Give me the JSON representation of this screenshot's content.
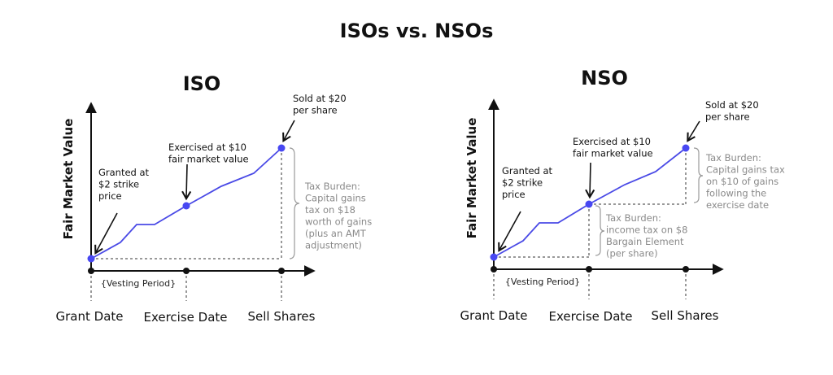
{
  "title": "ISOs vs. NSOs",
  "colors": {
    "line": "#4a4ae6",
    "point": "#4848f2",
    "ink": "#111111",
    "muted": "#8a8a8a"
  },
  "panels": [
    {
      "id": "iso",
      "heading": "ISO",
      "ylabel": "Fair Market Value",
      "x_ticks": [
        "Grant Date",
        "Exercise Date",
        "Sell Shares"
      ],
      "vesting": "{Vesting Period}",
      "annotations": {
        "granted": [
          "Granted at",
          "$2 strike",
          "price"
        ],
        "exercised": [
          "Exercised at $10",
          "fair market value"
        ],
        "sold": [
          "Sold at $20",
          "per share"
        ],
        "tax": [
          "Tax Burden:",
          "Capital gains",
          "tax on $18",
          "worth of gains",
          "(plus an AMT",
          "adjustment)"
        ]
      }
    },
    {
      "id": "nso",
      "heading": "NSO",
      "ylabel": "Fair Market Value",
      "x_ticks": [
        "Grant Date",
        "Exercise Date",
        "Sell Shares"
      ],
      "vesting": "{Vesting Period}",
      "annotations": {
        "granted": [
          "Granted at",
          "$2 strike",
          "price"
        ],
        "exercised": [
          "Exercised at $10",
          "fair market value"
        ],
        "sold": [
          "Sold at $20",
          "per share"
        ],
        "tax_exercise": [
          "Tax Burden:",
          "income tax on $8",
          "Bargain Element",
          "(per share)"
        ],
        "tax_sale": [
          "Tax Burden:",
          "Capital gains tax",
          "on $10 of gains",
          "following the",
          "exercise date"
        ]
      }
    }
  ]
}
